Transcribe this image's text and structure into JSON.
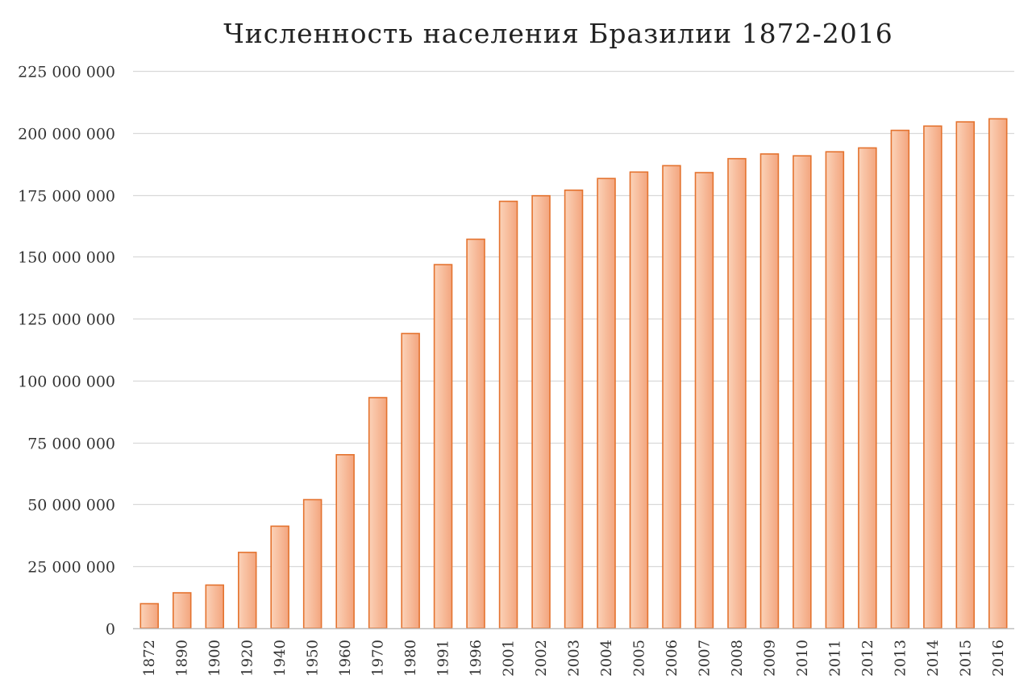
{
  "chart_data": {
    "type": "bar",
    "title": "Численность населения Бразилии 1872-2016",
    "xlabel": "",
    "ylabel": "",
    "categories": [
      "1872",
      "1890",
      "1900",
      "1920",
      "1940",
      "1950",
      "1960",
      "1970",
      "1980",
      "1991",
      "1996",
      "2001",
      "2002",
      "2003",
      "2004",
      "2005",
      "2006",
      "2007",
      "2008",
      "2009",
      "2010",
      "2011",
      "2012",
      "2013",
      "2014",
      "2015",
      "2016"
    ],
    "values": [
      9930478,
      14333915,
      17438434,
      30635605,
      41236315,
      51944397,
      70070457,
      93139037,
      119002706,
      146825475,
      157070163,
      172385826,
      174632960,
      176871437,
      181581024,
      184184264,
      186770562,
      183987291,
      189612814,
      191480630,
      190732694,
      192379287,
      193946886,
      201032714,
      202768562,
      204450649,
      205700000
    ],
    "ylim": [
      0,
      225000000
    ],
    "yticks": [
      0,
      25000000,
      50000000,
      75000000,
      100000000,
      125000000,
      150000000,
      175000000,
      200000000,
      225000000
    ],
    "ytick_labels": [
      "0",
      "25 000 000",
      "50 000 000",
      "75 000 000",
      "100 000 000",
      "125 000 000",
      "150 000 000",
      "175 000 000",
      "200 000 000",
      "225 000 000"
    ],
    "grid": true,
    "legend": "none",
    "colors": {
      "bar_fill_light": "#fbd2b8",
      "bar_fill_dark": "#f3a57e",
      "bar_stroke": "#e4732f",
      "grid": "#d9d9d9",
      "axis": "#bfbfbf"
    }
  }
}
